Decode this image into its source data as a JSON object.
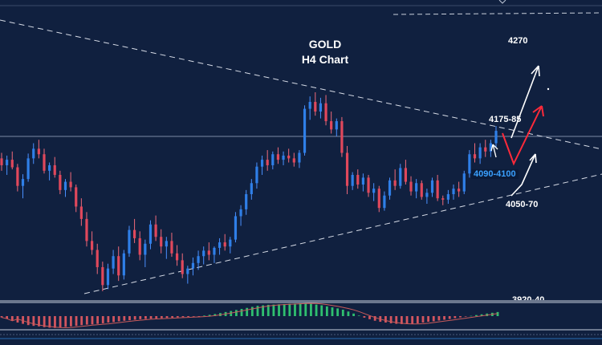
{
  "chart_data": {
    "type": "candlestick",
    "title": "GOLD",
    "subtitle": "H4 Chart",
    "colors": {
      "background": "#10203f",
      "bull": "#2f7fe8",
      "bear": "#e0485c",
      "wick_bull": "#4a90ff",
      "wick_bear": "#f06a7a",
      "trendline": "#d6dbe6",
      "arrow_up": "#ffffff",
      "arrow_target": "#ff2a3a",
      "resistance_label": "#ffffff",
      "support_zone_label": "#3aa0ff",
      "osc_positive": "#2fbf6f",
      "osc_negative": "#d2555f",
      "osc_signal": "#c85a5a"
    },
    "annotations": {
      "target": "4270",
      "resistance": "4175-85",
      "support_zone": "4090-4100",
      "support": "4050-70",
      "cut_label": "3920-40"
    },
    "candles": [
      [
        4118,
        4126,
        4100,
        4108
      ],
      [
        4108,
        4122,
        4094,
        4116
      ],
      [
        4116,
        4128,
        4102,
        4105
      ],
      [
        4105,
        4110,
        4070,
        4078
      ],
      [
        4078,
        4095,
        4060,
        4088
      ],
      [
        4088,
        4125,
        4084,
        4118
      ],
      [
        4118,
        4140,
        4110,
        4132
      ],
      [
        4132,
        4145,
        4118,
        4124
      ],
      [
        4124,
        4132,
        4096,
        4100
      ],
      [
        4100,
        4112,
        4086,
        4108
      ],
      [
        4108,
        4120,
        4090,
        4094
      ],
      [
        4094,
        4100,
        4066,
        4072
      ],
      [
        4072,
        4088,
        4062,
        4084
      ],
      [
        4084,
        4098,
        4070,
        4076
      ],
      [
        4076,
        4080,
        4040,
        4048
      ],
      [
        4048,
        4060,
        4020,
        4030
      ],
      [
        4030,
        4040,
        3990,
        3998
      ],
      [
        3998,
        4012,
        3978,
        3985
      ],
      [
        3985,
        3994,
        3950,
        3960
      ],
      [
        3960,
        3968,
        3925,
        3934
      ],
      [
        3934,
        3965,
        3928,
        3958
      ],
      [
        3958,
        3985,
        3950,
        3976
      ],
      [
        3976,
        3990,
        3940,
        3948
      ],
      [
        3948,
        3985,
        3942,
        3980
      ],
      [
        3980,
        4020,
        3975,
        4014
      ],
      [
        4014,
        4030,
        3995,
        4002
      ],
      [
        4002,
        4012,
        3970,
        3978
      ],
      [
        3978,
        4000,
        3960,
        3994
      ],
      [
        3994,
        4028,
        3986,
        4022
      ],
      [
        4022,
        4035,
        3998,
        4004
      ],
      [
        4004,
        4015,
        3980,
        3990
      ],
      [
        3990,
        4004,
        3972,
        3998
      ],
      [
        3998,
        4010,
        3975,
        3980
      ],
      [
        3980,
        3992,
        3962,
        3970
      ],
      [
        3970,
        3980,
        3944,
        3950
      ],
      [
        3950,
        3962,
        3936,
        3958
      ],
      [
        3958,
        3974,
        3948,
        3966
      ],
      [
        3966,
        3984,
        3956,
        3976
      ],
      [
        3976,
        3990,
        3964,
        3984
      ],
      [
        3984,
        3996,
        3970,
        3978
      ],
      [
        3978,
        3990,
        3966,
        3988
      ],
      [
        3988,
        4002,
        3978,
        3996
      ],
      [
        3996,
        4008,
        3984,
        3990
      ],
      [
        3990,
        4004,
        3980,
        4000
      ],
      [
        4000,
        4040,
        3996,
        4034
      ],
      [
        4034,
        4050,
        4020,
        4044
      ],
      [
        4044,
        4072,
        4036,
        4066
      ],
      [
        4066,
        4088,
        4058,
        4082
      ],
      [
        4082,
        4112,
        4074,
        4106
      ],
      [
        4106,
        4122,
        4094,
        4116
      ],
      [
        4116,
        4130,
        4100,
        4108
      ],
      [
        4108,
        4128,
        4102,
        4124
      ],
      [
        4124,
        4134,
        4110,
        4116
      ],
      [
        4116,
        4128,
        4108,
        4122
      ],
      [
        4122,
        4132,
        4112,
        4118
      ],
      [
        4118,
        4126,
        4106,
        4112
      ],
      [
        4112,
        4130,
        4104,
        4126
      ],
      [
        4126,
        4195,
        4122,
        4190
      ],
      [
        4190,
        4208,
        4174,
        4200
      ],
      [
        4200,
        4214,
        4180,
        4186
      ],
      [
        4186,
        4206,
        4176,
        4198
      ],
      [
        4198,
        4210,
        4166,
        4172
      ],
      [
        4172,
        4186,
        4154,
        4160
      ],
      [
        4160,
        4176,
        4150,
        4172
      ],
      [
        4172,
        4178,
        4120,
        4126
      ],
      [
        4126,
        4136,
        4066,
        4078
      ],
      [
        4078,
        4098,
        4072,
        4094
      ],
      [
        4094,
        4102,
        4074,
        4080
      ],
      [
        4080,
        4096,
        4070,
        4090
      ],
      [
        4090,
        4094,
        4062,
        4068
      ],
      [
        4068,
        4082,
        4056,
        4074
      ],
      [
        4074,
        4078,
        4040,
        4046
      ],
      [
        4046,
        4070,
        4042,
        4064
      ],
      [
        4064,
        4090,
        4058,
        4086
      ],
      [
        4086,
        4102,
        4072,
        4078
      ],
      [
        4078,
        4110,
        4074,
        4104
      ],
      [
        4104,
        4116,
        4080,
        4084
      ],
      [
        4084,
        4092,
        4064,
        4070
      ],
      [
        4070,
        4088,
        4060,
        4082
      ],
      [
        4082,
        4086,
        4058,
        4062
      ],
      [
        4062,
        4074,
        4052,
        4068
      ],
      [
        4068,
        4090,
        4062,
        4086
      ],
      [
        4086,
        4094,
        4056,
        4060
      ],
      [
        4060,
        4064,
        4050,
        4058
      ],
      [
        4058,
        4072,
        4052,
        4066
      ],
      [
        4066,
        4080,
        4058,
        4074
      ],
      [
        4074,
        4084,
        4062,
        4070
      ],
      [
        4070,
        4100,
        4066,
        4096
      ],
      [
        4096,
        4130,
        4090,
        4124
      ],
      [
        4124,
        4140,
        4112,
        4118
      ],
      [
        4118,
        4140,
        4110,
        4134
      ],
      [
        4134,
        4145,
        4120,
        4128
      ],
      [
        4128,
        4145,
        4120,
        4140
      ],
      [
        4140,
        4165,
        4134,
        4158
      ]
    ],
    "oscillator": [
      -0.5,
      -1,
      -1.8,
      -2.5,
      -3,
      -3.5,
      -3.8,
      -4,
      -4.3,
      -4.5,
      -4.6,
      -4.5,
      -4.2,
      -4,
      -3.8,
      -3.5,
      -3.3,
      -3.2,
      -3,
      -2.8,
      -2.5,
      -2.3,
      -2,
      -1.8,
      -1.6,
      -1.4,
      -1.2,
      -1.1,
      -1,
      -0.9,
      -0.8,
      -0.7,
      -0.6,
      -0.5,
      -0.4,
      -0.3,
      -0.2,
      -0.1,
      0.2,
      0.5,
      0.8,
      1.2,
      1.6,
      2,
      2.4,
      2.8,
      3.2,
      3.6,
      4,
      4.2,
      4.4,
      4.5,
      4.6,
      4.7,
      4.8,
      4.9,
      5,
      5,
      4.8,
      4.5,
      4.2,
      3.8,
      3.4,
      3,
      2.5,
      1.8,
      1,
      0.2,
      -0.6,
      -1.2,
      -1.8,
      -2.2,
      -2.5,
      -2.8,
      -3,
      -3.1,
      -3.1,
      -3,
      -2.8,
      -2.5,
      -2.2,
      -2,
      -1.7,
      -1.4,
      -1.1,
      -0.8,
      -0.5,
      -0.2,
      0.1,
      0.4,
      0.7,
      1,
      1.3,
      1.6
    ]
  }
}
